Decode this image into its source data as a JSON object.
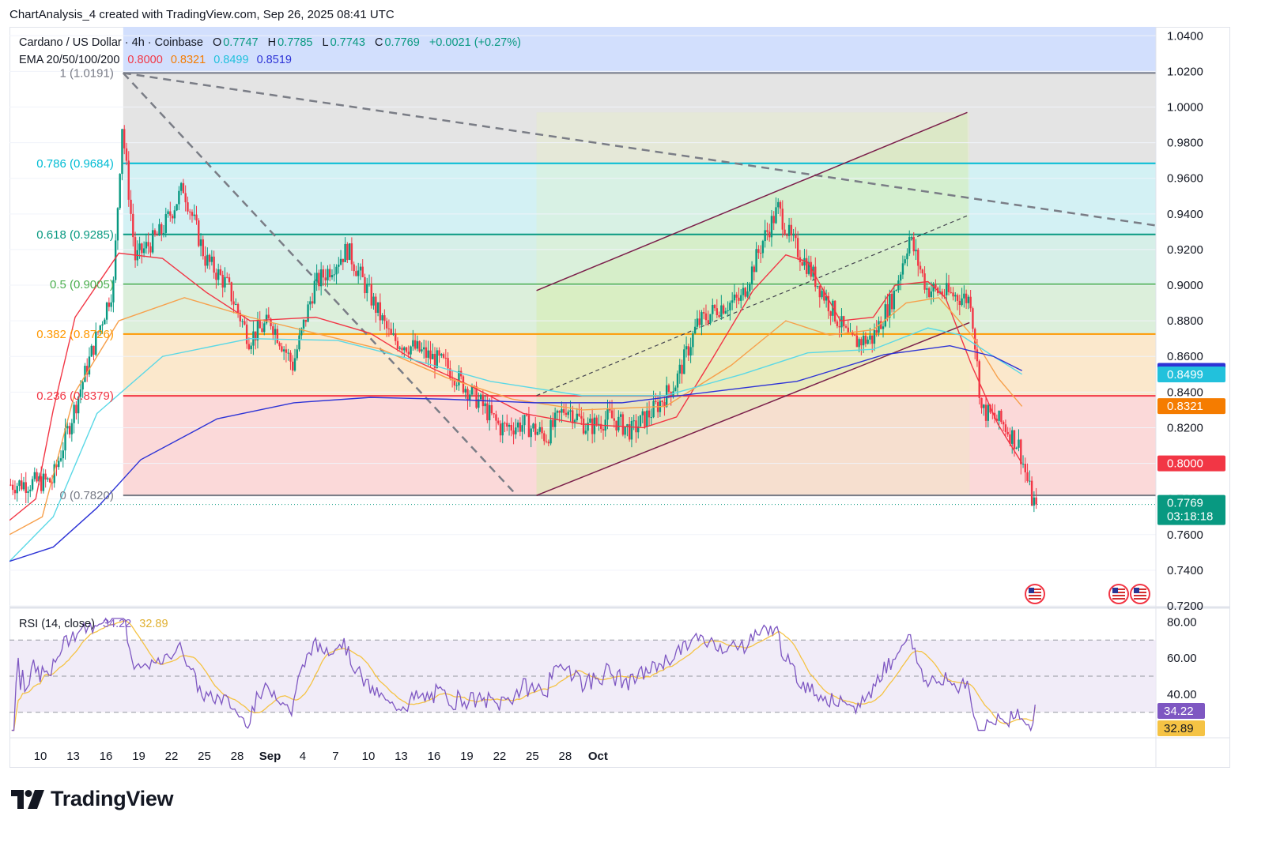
{
  "header_text": "ChartAnalysis_4 created with TradingView.com, Sep 26, 2025 08:41 UTC",
  "legend": {
    "symbol": "Cardano / US Dollar · 4h · Coinbase",
    "o_label": "O",
    "o_value": "0.7747",
    "h_label": "H",
    "h_value": "0.7785",
    "l_label": "L",
    "l_value": "0.7743",
    "c_label": "C",
    "c_value": "0.7769",
    "change": "+0.0021 (+0.27%)",
    "ema_label": "EMA 20/50/100/200",
    "ema20": "0.8000",
    "ema50": "0.8321",
    "ema100": "0.8499",
    "ema200": "0.8519",
    "rsi_label": "RSI (14, close)",
    "rsi_value": "34.22",
    "rsi_ma": "32.89"
  },
  "colors": {
    "up": "#089981",
    "down": "#f23645",
    "ema20": "#f23645",
    "ema50": "#f7a04b",
    "ema100": "#5ad8e6",
    "ema200": "#2d33d6",
    "rsi": "#7e57c2",
    "rsi_ma": "#f5c344"
  },
  "brand": "TradingView",
  "chart_data": [
    {
      "type": "candlestick",
      "timeframe": "4h",
      "x_ticks": [
        "10",
        "13",
        "16",
        "19",
        "22",
        "25",
        "28",
        "Sep",
        "4",
        "7",
        "10",
        "13",
        "16",
        "19",
        "22",
        "25",
        "28",
        "Oct"
      ],
      "y_ticks": [
        "0.7200",
        "0.7400",
        "0.7600",
        "0.7800",
        "0.8000",
        "0.8200",
        "0.8400",
        "0.8600",
        "0.8800",
        "0.9000",
        "0.9200",
        "0.9400",
        "0.9600",
        "0.9800",
        "1.0000",
        "1.0200",
        "1.0400"
      ],
      "ylim": [
        0.72,
        1.045
      ],
      "price_labels": [
        {
          "text": "0.8519",
          "color": "#2d33d6",
          "y": 0.8519
        },
        {
          "text": "0.8499",
          "color": "#22c1dc",
          "y": 0.8499
        },
        {
          "text": "0.8321",
          "color": "#f57c00",
          "y": 0.8321
        },
        {
          "text": "0.8000",
          "color": "#f23645",
          "y": 0.8
        },
        {
          "text": "0.7769",
          "sub": "03:18:18",
          "color": "#089981",
          "y": 0.7769
        }
      ],
      "fib_levels": [
        {
          "label": "1 (1.0191)",
          "value": 1.0191,
          "color": "#787b86",
          "zone": "#e4e4e4"
        },
        {
          "label": "0.786 (0.9684)",
          "value": 0.9684,
          "color": "#00bcd4",
          "zone": "#d3f1f4"
        },
        {
          "label": "0.618 (0.9285)",
          "value": 0.9285,
          "color": "#089981",
          "zone": "#d6efe8"
        },
        {
          "label": "0.5 (0.9005)",
          "value": 0.9005,
          "color": "#4caf50",
          "zone": "#dcefdb"
        },
        {
          "label": "0.382 (0.8726)",
          "value": 0.8726,
          "color": "#ff9800",
          "zone": "#fbe8cc"
        },
        {
          "label": "0.236 (0.8379)",
          "value": 0.8379,
          "color": "#f23645",
          "zone": "#fbd9d9"
        },
        {
          "label": "0 (0.7820)",
          "value": 0.782,
          "color": "#787b86"
        }
      ],
      "top_zone_color": "#d2dffd",
      "ema": {
        "ema20": [
          [
            0,
            0.768
          ],
          [
            12,
            0.78
          ],
          [
            20,
            0.83
          ],
          [
            30,
            0.882
          ],
          [
            50,
            0.918
          ],
          [
            70,
            0.915
          ],
          [
            90,
            0.896
          ],
          [
            110,
            0.88
          ],
          [
            140,
            0.882
          ],
          [
            165,
            0.873
          ],
          [
            185,
            0.858
          ],
          [
            210,
            0.844
          ],
          [
            235,
            0.828
          ],
          [
            262,
            0.822
          ],
          [
            290,
            0.82
          ],
          [
            305,
            0.826
          ],
          [
            322,
            0.86
          ],
          [
            340,
            0.897
          ],
          [
            355,
            0.917
          ],
          [
            365,
            0.913
          ],
          [
            380,
            0.88
          ],
          [
            395,
            0.882
          ],
          [
            405,
            0.9
          ],
          [
            420,
            0.902
          ],
          [
            428,
            0.893
          ],
          [
            440,
            0.855
          ],
          [
            452,
            0.822
          ],
          [
            463,
            0.8
          ]
        ],
        "ema50": [
          [
            0,
            0.76
          ],
          [
            15,
            0.77
          ],
          [
            30,
            0.84
          ],
          [
            50,
            0.88
          ],
          [
            80,
            0.893
          ],
          [
            110,
            0.882
          ],
          [
            140,
            0.873
          ],
          [
            170,
            0.864
          ],
          [
            200,
            0.848
          ],
          [
            230,
            0.836
          ],
          [
            262,
            0.83
          ],
          [
            300,
            0.832
          ],
          [
            330,
            0.855
          ],
          [
            355,
            0.88
          ],
          [
            375,
            0.872
          ],
          [
            395,
            0.875
          ],
          [
            410,
            0.89
          ],
          [
            425,
            0.893
          ],
          [
            440,
            0.872
          ],
          [
            452,
            0.848
          ],
          [
            463,
            0.832
          ]
        ],
        "ema100": [
          [
            0,
            0.745
          ],
          [
            20,
            0.77
          ],
          [
            40,
            0.828
          ],
          [
            70,
            0.86
          ],
          [
            110,
            0.87
          ],
          [
            150,
            0.869
          ],
          [
            185,
            0.858
          ],
          [
            220,
            0.846
          ],
          [
            262,
            0.838
          ],
          [
            300,
            0.838
          ],
          [
            335,
            0.85
          ],
          [
            365,
            0.862
          ],
          [
            395,
            0.864
          ],
          [
            420,
            0.876
          ],
          [
            435,
            0.872
          ],
          [
            450,
            0.86
          ],
          [
            463,
            0.85
          ]
        ],
        "ema200": [
          [
            0,
            0.745
          ],
          [
            20,
            0.753
          ],
          [
            40,
            0.775
          ],
          [
            60,
            0.802
          ],
          [
            95,
            0.825
          ],
          [
            130,
            0.834
          ],
          [
            165,
            0.837
          ],
          [
            200,
            0.836
          ],
          [
            240,
            0.834
          ],
          [
            280,
            0.834
          ],
          [
            320,
            0.84
          ],
          [
            360,
            0.846
          ],
          [
            400,
            0.861
          ],
          [
            430,
            0.866
          ],
          [
            450,
            0.86
          ],
          [
            463,
            0.852
          ]
        ]
      },
      "trendlines": [
        {
          "from": [
            52,
            1.0191
          ],
          "to": [
            543,
            0.9335
          ],
          "style": "dashed"
        },
        {
          "from": [
            52,
            1.0191
          ],
          "to": [
            232,
            0.782
          ],
          "style": "dashed"
        },
        {
          "from": [
            241,
            0.782
          ],
          "to": [
            439,
            0.879
          ],
          "style": "solid"
        },
        {
          "from": [
            241,
            0.897
          ],
          "to": [
            438,
            0.997
          ],
          "style": "solid"
        },
        {
          "from": [
            241,
            0.838
          ],
          "to": [
            438,
            0.939
          ],
          "style": "dotted"
        }
      ],
      "events": [
        "US",
        "US",
        "US"
      ]
    },
    {
      "type": "line",
      "name": "RSI (14, close)",
      "ylim": [
        15,
        85
      ],
      "y_ticks": [
        "40.00",
        "60.00",
        "80.00"
      ],
      "bands": [
        30,
        50,
        70
      ],
      "value_labels": [
        {
          "text": "34.22",
          "color": "#7e57c2"
        },
        {
          "text": "32.89",
          "color": "#f5c344"
        }
      ]
    }
  ]
}
